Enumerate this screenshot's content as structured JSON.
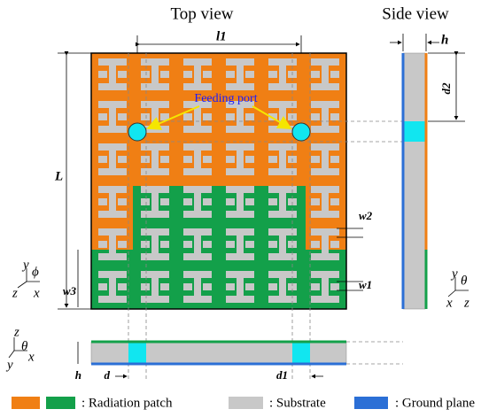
{
  "views": {
    "top": "Top view",
    "side": "Side view"
  },
  "dimensions": {
    "l1": "l1",
    "L": "L",
    "h_side": "h",
    "d2": "d2",
    "w2": "w2",
    "w1": "w1",
    "w3": "w3",
    "d": "d",
    "d1": "d1",
    "h_bottom": "h"
  },
  "feeding_port": "Feeding port",
  "axes": {
    "top": {
      "y": "y",
      "phi": "ϕ",
      "z": "z",
      "x": "x"
    },
    "side": {
      "y": "y",
      "theta": "θ",
      "x": "x",
      "z": "z"
    },
    "bottom": {
      "z": "z",
      "theta": "θ",
      "y": "y",
      "x": "x"
    }
  },
  "legend": {
    "radiation_patch": ": Radiation patch",
    "substrate": ": Substrate",
    "ground_plane": ": Ground plane"
  }
}
